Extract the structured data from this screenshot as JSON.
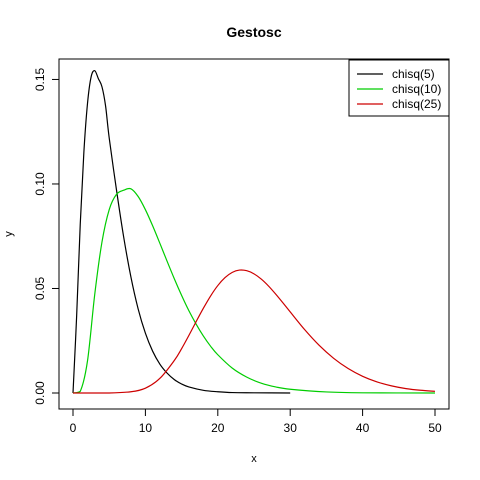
{
  "chart_data": {
    "type": "line",
    "title": "Gestosc",
    "xlabel": "x",
    "ylabel": "y",
    "xlim": [
      0,
      50
    ],
    "ylim": [
      0,
      0.155
    ],
    "xticks": [
      0,
      10,
      20,
      30,
      40,
      50
    ],
    "xtick_labels": [
      "0",
      "10",
      "20",
      "30",
      "40",
      "50"
    ],
    "yticks": [
      0.0,
      0.05,
      0.1,
      0.15
    ],
    "ytick_labels": [
      "0.00",
      "0.05",
      "0.10",
      "0.15"
    ],
    "grid": false,
    "legend_position": "top-right",
    "series": [
      {
        "name": "chisq(5)",
        "color": "#000000",
        "x": [
          0,
          0.5,
          1,
          1.5,
          2,
          2.5,
          3,
          3.5,
          4,
          4.5,
          5,
          6,
          7,
          8,
          9,
          10,
          11,
          12,
          13,
          14,
          15,
          16,
          18,
          20,
          22,
          25,
          30
        ],
        "y": [
          0,
          0.0366,
          0.0807,
          0.1151,
          0.1384,
          0.1512,
          0.1542,
          0.1504,
          0.1465,
          0.1373,
          0.122,
          0.0973,
          0.0746,
          0.0555,
          0.0402,
          0.0286,
          0.02,
          0.0138,
          0.0095,
          0.0064,
          0.0043,
          0.0029,
          0.0013,
          0.0006,
          0.0002,
          0.0001,
          0.0
        ]
      },
      {
        "name": "chisq(10)",
        "color": "#00cd00",
        "x": [
          0,
          1,
          2,
          3,
          4,
          5,
          6,
          7,
          8,
          9,
          10,
          11,
          12,
          13,
          14,
          15,
          16,
          17,
          18,
          19,
          20,
          22,
          24,
          26,
          28,
          30,
          35,
          40,
          50
        ],
        "y": [
          0,
          0.0008,
          0.0153,
          0.0471,
          0.0722,
          0.0877,
          0.095,
          0.097,
          0.0977,
          0.094,
          0.0877,
          0.08,
          0.0716,
          0.063,
          0.0546,
          0.0467,
          0.0394,
          0.033,
          0.0273,
          0.0224,
          0.0183,
          0.0119,
          0.0076,
          0.0047,
          0.0029,
          0.0018,
          0.0005,
          0.0001,
          0.0
        ]
      },
      {
        "name": "chisq(25)",
        "color": "#cd0000",
        "x": [
          0,
          5,
          8,
          10,
          12,
          14,
          15,
          16,
          17,
          18,
          19,
          20,
          21,
          22,
          23,
          24,
          25,
          26,
          27,
          28,
          29,
          30,
          32,
          34,
          36,
          38,
          40,
          42,
          44,
          46,
          48,
          50
        ],
        "y": [
          0,
          0.0,
          0.0006,
          0.0023,
          0.007,
          0.0156,
          0.0212,
          0.0275,
          0.0341,
          0.0405,
          0.0464,
          0.0514,
          0.0552,
          0.0577,
          0.0588,
          0.0585,
          0.057,
          0.0545,
          0.0512,
          0.0473,
          0.0431,
          0.0388,
          0.0303,
          0.0228,
          0.0166,
          0.0117,
          0.008,
          0.0053,
          0.0034,
          0.0021,
          0.0013,
          0.0008
        ]
      }
    ]
  }
}
